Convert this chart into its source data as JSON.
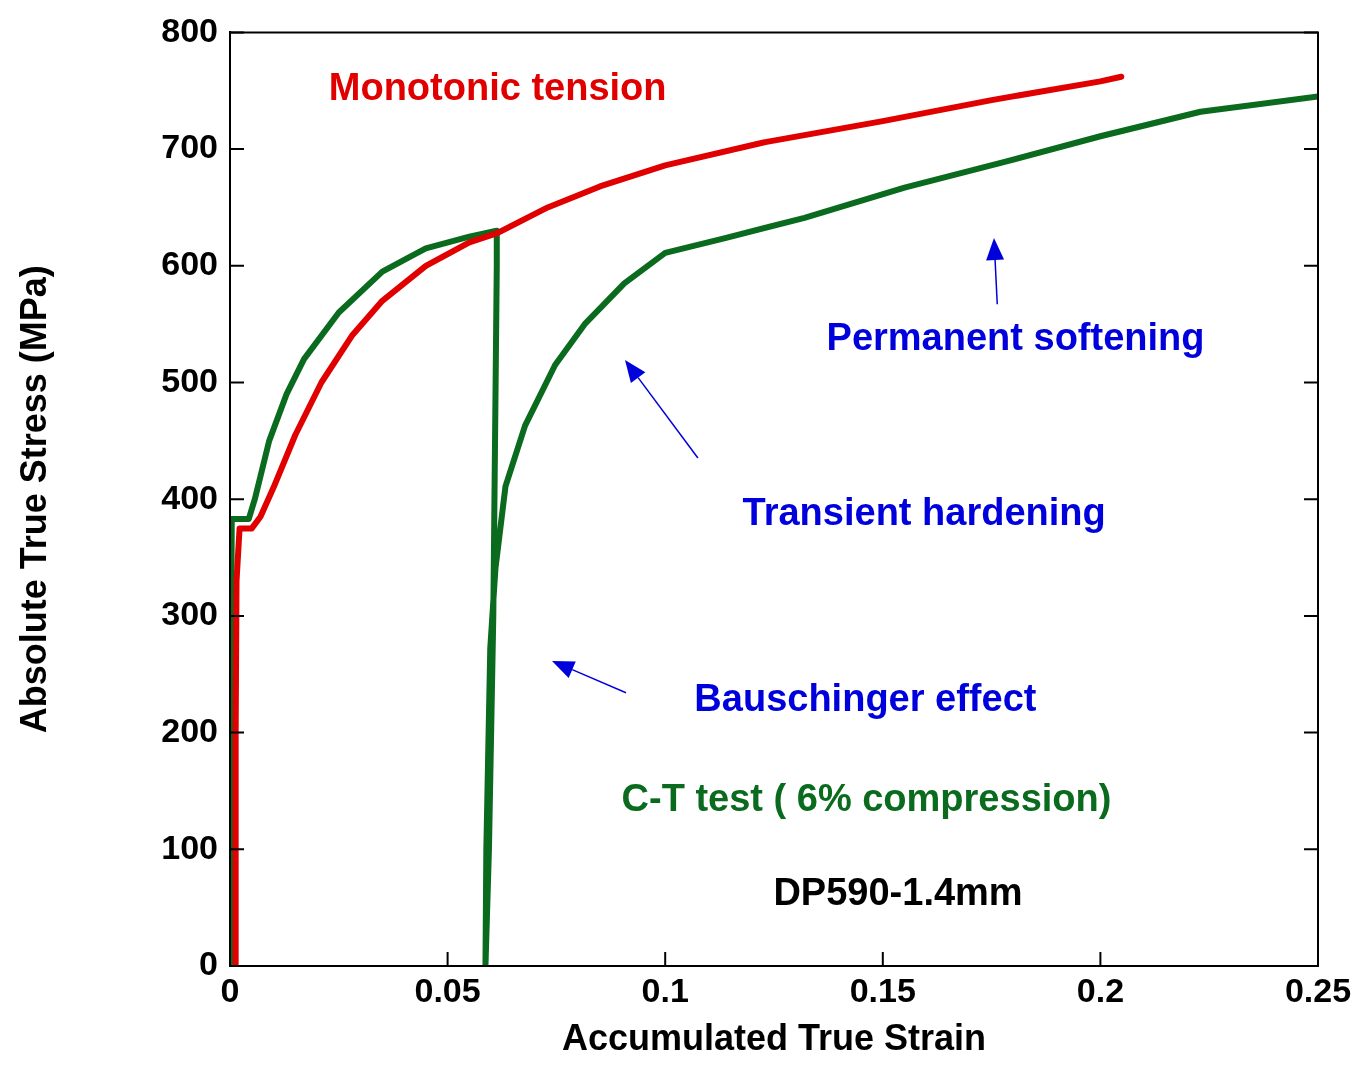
{
  "chart_data": {
    "type": "line",
    "xlabel": "Accumulated True Strain",
    "ylabel": "Absolute True Stress (MPa)",
    "xlim": [
      0,
      0.25
    ],
    "xticks": [
      0,
      0.05,
      0.1,
      0.15,
      0.2,
      0.25
    ],
    "ylim": [
      0,
      800
    ],
    "yticks": [
      0,
      100,
      200,
      300,
      400,
      500,
      600,
      700,
      800
    ],
    "grid": false,
    "legend": false,
    "marker": "none",
    "line_style": "solid",
    "series": [
      {
        "name": "Monotonic tension",
        "color": "#e00000",
        "x": [
          0.0012,
          0.0013,
          0.0015,
          0.0022,
          0.005,
          0.007,
          0.01,
          0.015,
          0.021,
          0.028,
          0.035,
          0.045,
          0.055,
          0.0614,
          0.073,
          0.085,
          0.1,
          0.123,
          0.15,
          0.175,
          0.2,
          0.2048
        ],
        "values": [
          0,
          200,
          330,
          375,
          375,
          385,
          410,
          455,
          500,
          540,
          570,
          600,
          620,
          628,
          650,
          668,
          686,
          706,
          724,
          742,
          758,
          762
        ]
      },
      {
        "name": "C-T test ( 6% compression)",
        "color": "#0a6a1e",
        "x": [
          0,
          0.0002,
          0.0004,
          0.002,
          0.0043,
          0.0057,
          0.009,
          0.013,
          0.017,
          0.025,
          0.035,
          0.045,
          0.055,
          0.0613,
          0.0613,
          0.0605,
          0.0595,
          0.0587,
          0.0589,
          0.0598,
          0.061,
          0.0633,
          0.0678,
          0.0747,
          0.0815,
          0.0906,
          0.1,
          0.114,
          0.132,
          0.155,
          0.178,
          0.2,
          0.223,
          0.25
        ],
        "values": [
          0,
          200,
          383,
          383,
          383,
          400,
          450,
          490,
          520,
          560,
          595,
          615,
          625,
          630,
          600,
          300,
          100,
          0,
          100,
          272,
          341,
          411,
          463,
          515,
          550,
          585,
          611,
          624,
          641,
          667,
          689,
          711,
          732,
          745
        ]
      }
    ],
    "annotations": [
      "Permanent softening",
      "Transient hardening",
      "Bauschinger effect",
      "DP590-1.4mm"
    ]
  }
}
